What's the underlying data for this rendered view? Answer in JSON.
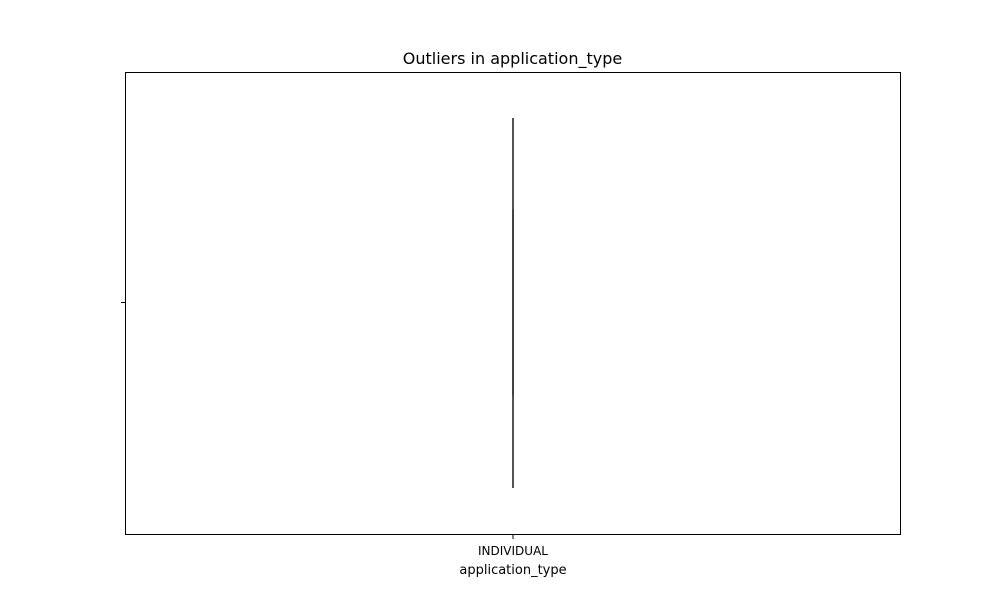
{
  "chart_data": {
    "type": "box",
    "orientation": "horizontal",
    "title": "Outliers in application_type",
    "xlabel": "application_type",
    "ylabel": "",
    "categories": [
      "INDIVIDUAL"
    ],
    "box": {
      "whisker_low": 0.0,
      "q1": 0.0,
      "median": 0.0,
      "q3": 0.0,
      "whisker_high": 0.0
    },
    "outliers": [],
    "grid": false,
    "legend": "none",
    "colors": {
      "frame": "#000000",
      "box": "#3d3d3d",
      "text": "#000000"
    }
  }
}
